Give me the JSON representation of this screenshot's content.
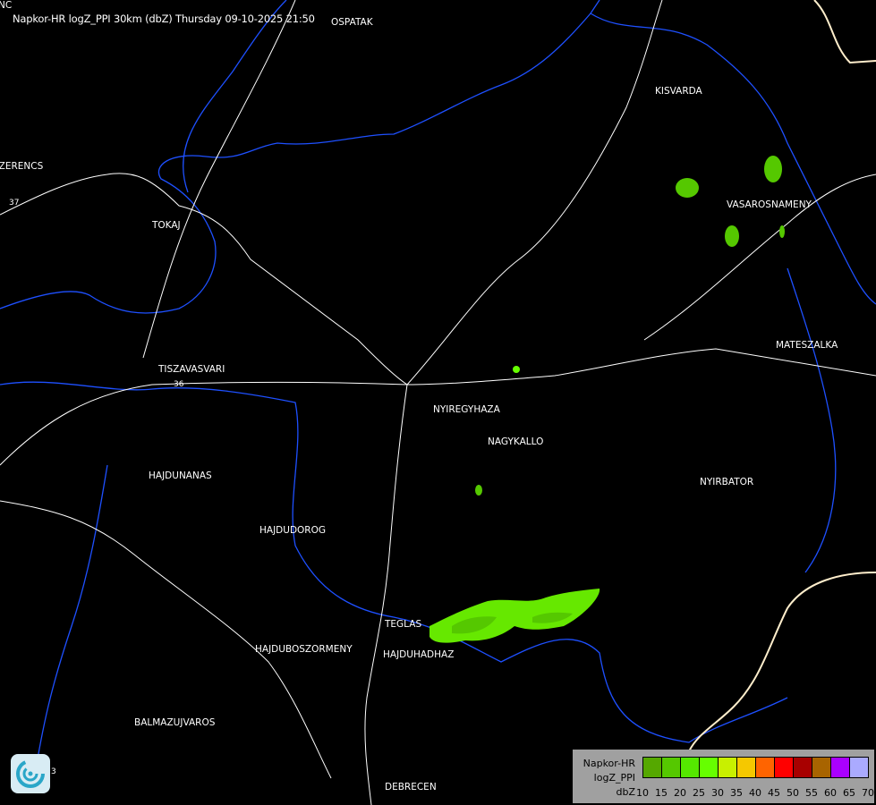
{
  "title": "Napkor-HR logZ_PPI 30km (dbZ) Thursday 09-10-2025 21:50",
  "cities": [
    {
      "name": "OSPATAK"
    },
    {
      "name": "KISVARDA"
    },
    {
      "name": "SZERENCS"
    },
    {
      "name": "TOKAJ"
    },
    {
      "name": "VASAROSNAMENY"
    },
    {
      "name": "MATESZALKA"
    },
    {
      "name": "TISZAVASVARI"
    },
    {
      "name": "NYIREGYHAZA"
    },
    {
      "name": "NAGYKALLO"
    },
    {
      "name": "HAJDUNANAS"
    },
    {
      "name": "NYIRBATOR"
    },
    {
      "name": "HAJDUDOROG"
    },
    {
      "name": "TEGLAS"
    },
    {
      "name": "HAJDUBOSZORMENY"
    },
    {
      "name": "HAJDUHADHAZ"
    },
    {
      "name": "BALMAZUJVAROS"
    },
    {
      "name": "DEBRECEN"
    },
    {
      "name": "NC"
    }
  ],
  "road_numbers": [
    "37",
    "36",
    "3"
  ],
  "legend": {
    "line1": "Napkor-HR",
    "line2": "logZ_PPI",
    "unit": "dbZ",
    "colors": [
      "#55a800",
      "#55c800",
      "#55e800",
      "#66ff00",
      "#c8f000",
      "#f5c800",
      "#ff6400",
      "#ff0000",
      "#a80000",
      "#a86400",
      "#aa00ff",
      "#aaaaff"
    ],
    "ticks": [
      "10",
      "15",
      "20",
      "25",
      "30",
      "35",
      "40",
      "45",
      "50",
      "55",
      "60",
      "65",
      "70"
    ]
  },
  "colors": {
    "background": "#000000",
    "roads": "#ffffff",
    "rivers": "#0044ff",
    "border": "#ffeecc"
  },
  "logo": "radar-swirl-logo"
}
